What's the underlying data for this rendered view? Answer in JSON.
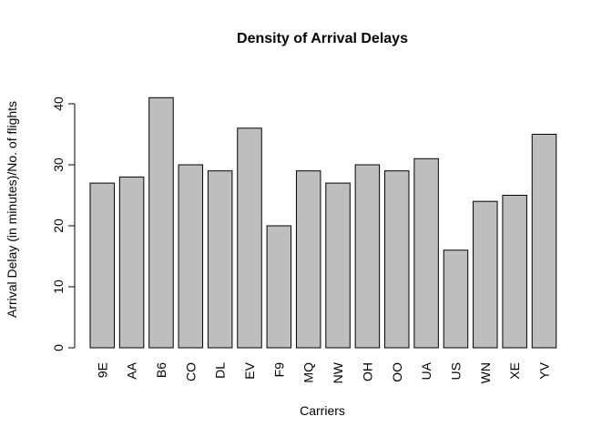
{
  "chart_data": {
    "type": "bar",
    "title": "Density of Arrival Delays",
    "xlabel": "Carriers",
    "ylabel": "Arrival Delay (in minutes)/No. of flights",
    "categories": [
      "9E",
      "AA",
      "B6",
      "CO",
      "DL",
      "EV",
      "F9",
      "MQ",
      "NW",
      "OH",
      "OO",
      "UA",
      "US",
      "WN",
      "XE",
      "YV"
    ],
    "values": [
      27,
      28,
      41,
      30,
      29,
      36,
      20,
      29,
      27,
      30,
      29,
      31,
      16,
      24,
      25,
      35
    ],
    "yticks": [
      0,
      10,
      20,
      30,
      40
    ],
    "ylim": [
      0,
      42
    ],
    "grid": false,
    "legend": "none",
    "bar_color": "#bebebe",
    "edge_color": "#000000"
  }
}
